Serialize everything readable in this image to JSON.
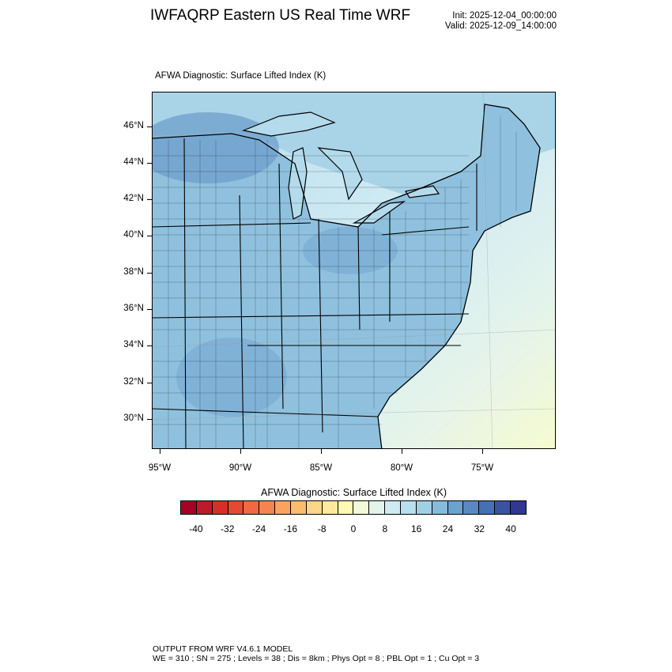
{
  "header": {
    "title": "IWFAQRP Eastern US Real Time WRF",
    "init": "Init: 2025-12-04_00:00:00",
    "valid": "Valid: 2025-12-09_14:00:00"
  },
  "plot": {
    "subtitle": "AFWA Diagnostic: Surface Lifted Index   (K)",
    "lat_labels": [
      "46°N",
      "44°N",
      "42°N",
      "40°N",
      "38°N",
      "36°N",
      "34°N",
      "32°N",
      "30°N"
    ],
    "lon_labels": [
      "95°W",
      "90°W",
      "85°W",
      "80°W",
      "75°W"
    ]
  },
  "colorbar": {
    "title": "AFWA Diagnostic: Surface Lifted Index  (K)",
    "min": -44,
    "max": 44,
    "step": 4,
    "labels": [
      "-40",
      "-32",
      "-24",
      "-16",
      "-8",
      "0",
      "8",
      "16",
      "24",
      "32",
      "40"
    ],
    "colors": [
      "#a50026",
      "#bd1a2b",
      "#d62f27",
      "#e24a33",
      "#f26841",
      "#f6844f",
      "#fba35d",
      "#fdbb6d",
      "#fdd789",
      "#fee99c",
      "#fefab6",
      "#f1f9d6",
      "#e3f3eb",
      "#d0eaf3",
      "#b8dfee",
      "#a1d0e4",
      "#85bcdb",
      "#6aa3cd",
      "#5989c0",
      "#4571b3",
      "#3b52a2",
      "#313894"
    ]
  },
  "footer": {
    "line1": "OUTPUT FROM WRF V4.6.1 MODEL",
    "line2": "WE = 310 ; SN = 275 ; Levels = 38 ; Dis = 8km ; Phys Opt = 8 ; PBL Opt = 1 ; Cu Opt = 3"
  }
}
